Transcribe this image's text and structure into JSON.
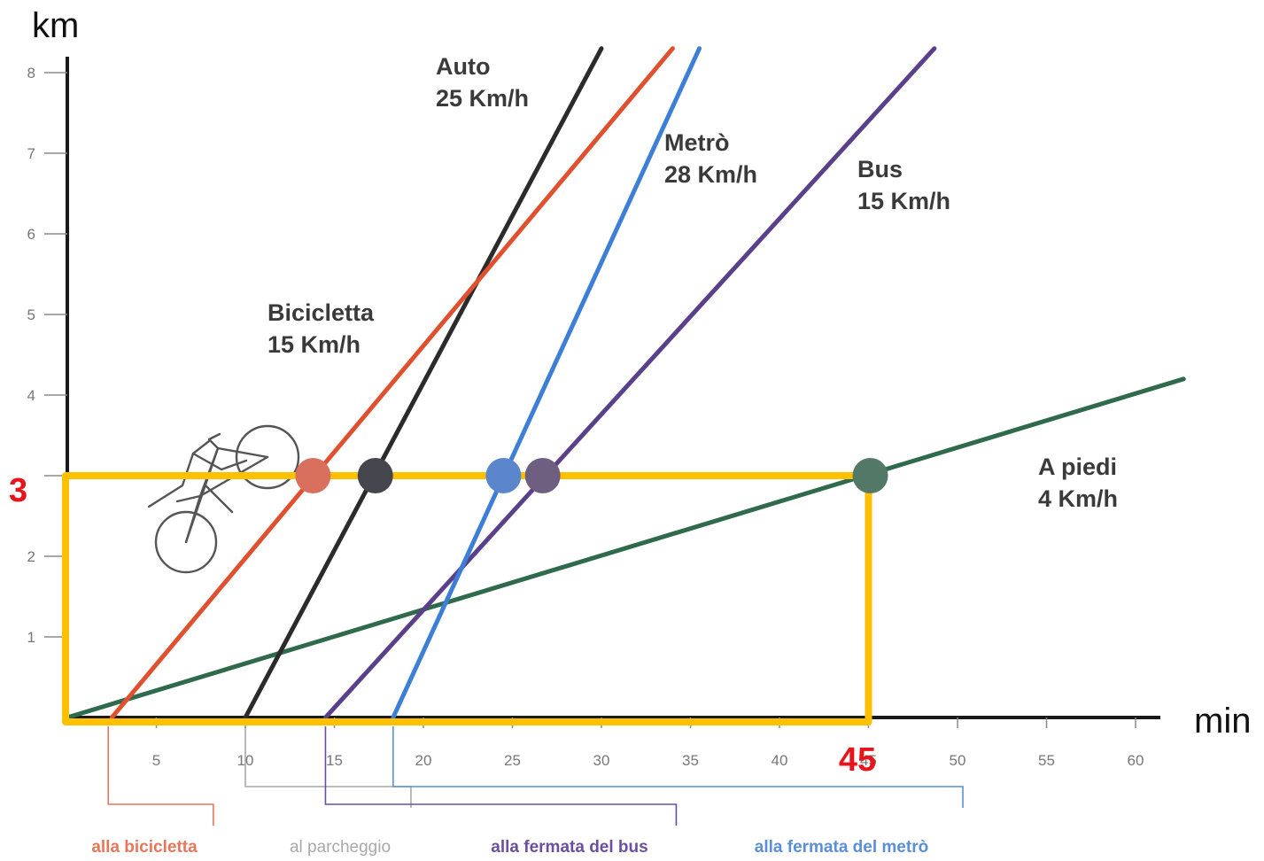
{
  "chart_data": {
    "type": "line",
    "xlabel": "min",
    "ylabel": "km",
    "xlim": [
      0,
      62
    ],
    "ylim": [
      0,
      8.3
    ],
    "xticks": [
      5,
      10,
      15,
      20,
      25,
      30,
      35,
      40,
      45,
      50,
      55,
      60
    ],
    "yticks": [
      1,
      2,
      3,
      4,
      5,
      6,
      7,
      8
    ],
    "colors": {
      "bicicletta": "#e0502e",
      "auto": "#2b2b2b",
      "metro": "#3d7fd6",
      "bus": "#5a3f8a",
      "piedi": "#2f6a4c",
      "highlight_box": "#ffc000",
      "highlight_text": "#e8141c"
    },
    "series": [
      {
        "key": "bicicletta",
        "label_line1": "Bicicletta",
        "label_line2": "15 Km/h",
        "start_min": 2.5,
        "speed_kmh": 15,
        "x": [
          2.5,
          34
        ],
        "y": [
          0,
          8.3
        ]
      },
      {
        "key": "auto",
        "label_line1": "Auto",
        "label_line2": "25 Km/h",
        "start_min": 10,
        "speed_kmh": 25,
        "x": [
          10,
          30
        ],
        "y": [
          0,
          8.3
        ]
      },
      {
        "key": "metro",
        "label_line1": "Metrò",
        "label_line2": "28 Km/h",
        "start_min": 18.3,
        "speed_kmh": 28,
        "x": [
          18.3,
          35.5
        ],
        "y": [
          0,
          8.3
        ]
      },
      {
        "key": "bus",
        "label_line1": "Bus",
        "label_line2": "15 Km/h",
        "start_min": 14.5,
        "speed_kmh": 15,
        "x": [
          14.5,
          48.7
        ],
        "y": [
          0,
          8.3
        ]
      },
      {
        "key": "piedi",
        "label_line1": "A piedi",
        "label_line2": "4 Km/h",
        "start_min": 0,
        "speed_kmh": 4,
        "x": [
          0,
          62.7
        ],
        "y": [
          0,
          4.2
        ]
      }
    ],
    "highlight": {
      "distance_km": 3,
      "time_min": 45,
      "distance_label": "3",
      "time_label": "45",
      "points": [
        {
          "key": "bicicletta",
          "x": 13.8,
          "y": 3,
          "color": "#d9705e"
        },
        {
          "key": "auto",
          "x": 17.3,
          "y": 3,
          "color": "#45454d"
        },
        {
          "key": "metro",
          "x": 24.5,
          "y": 3,
          "color": "#5b86cc"
        },
        {
          "key": "bus",
          "x": 26.7,
          "y": 3,
          "color": "#6e5f80"
        },
        {
          "key": "piedi",
          "x": 45.1,
          "y": 3,
          "color": "#547868"
        }
      ]
    },
    "wait_times": [
      {
        "label": "alla bicicletta",
        "from_min": 2.3,
        "to_min": 8.2,
        "color": "#e7765a"
      },
      {
        "label": "al parcheggio",
        "from_min": 10,
        "to_min": 19.3,
        "color": "#a9a9a9"
      },
      {
        "label": "alla fermata del bus",
        "from_min": 14.5,
        "to_min": 34.2,
        "color": "#6a4fa0"
      },
      {
        "label": "alla fermata del metrò",
        "from_min": 18.3,
        "to_min": 50.3,
        "color": "#5a8fd8"
      }
    ]
  }
}
